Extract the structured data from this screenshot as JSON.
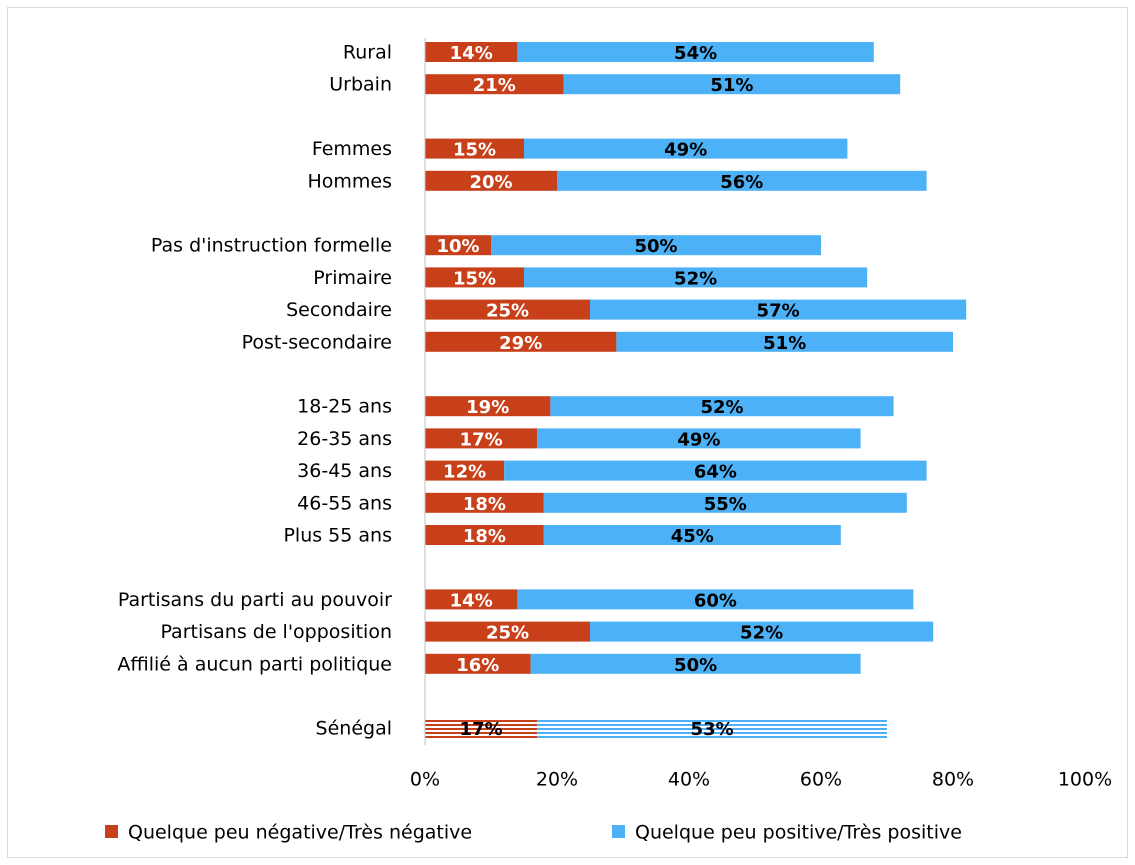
{
  "chart_data": {
    "type": "stacked_bar_horizontal",
    "categories": [
      "Rural",
      "Urbain",
      null,
      "Femmes",
      "Hommes",
      null,
      "Pas d'instruction formelle",
      "Primaire",
      "Secondaire",
      "Post-secondaire",
      null,
      "18-25 ans",
      "26-35 ans",
      "36-45 ans",
      "46-55 ans",
      "Plus 55 ans",
      null,
      "Partisans du parti au pouvoir",
      "Partisans de l'opposition",
      "Affilié à aucun parti politique",
      null,
      "Sénégal"
    ],
    "series": [
      {
        "name": "Quelque peu négative/Très négative",
        "color": "#c8401a",
        "values": [
          14,
          21,
          null,
          15,
          20,
          null,
          10,
          15,
          25,
          29,
          null,
          19,
          17,
          12,
          18,
          18,
          null,
          14,
          25,
          16,
          null,
          17
        ],
        "value_labels": [
          "14%",
          "21%",
          null,
          "15%",
          "20%",
          null,
          "10%",
          "15%",
          "25%",
          "29%",
          null,
          "19%",
          "17%",
          "12%",
          "18%",
          "18%",
          null,
          "14%",
          "25%",
          "16%",
          null,
          "17%"
        ]
      },
      {
        "name": "Quelque peu positive/Très positive",
        "color": "#4cb1f7",
        "values": [
          54,
          51,
          null,
          49,
          56,
          null,
          50,
          52,
          57,
          51,
          null,
          52,
          49,
          64,
          55,
          45,
          null,
          60,
          52,
          50,
          null,
          53
        ],
        "value_labels": [
          "54%",
          "51%",
          null,
          "49%",
          "56%",
          null,
          "50%",
          "52%",
          "57%",
          "51%",
          null,
          "52%",
          "49%",
          "64%",
          "55%",
          "45%",
          null,
          "60%",
          "52%",
          "50%",
          null,
          "53%"
        ]
      }
    ],
    "xlim": [
      0,
      100
    ],
    "xticks": [
      {
        "value": 0,
        "label": "0%"
      },
      {
        "value": 20,
        "label": "20%"
      },
      {
        "value": 40,
        "label": "40%"
      },
      {
        "value": 60,
        "label": "60%"
      },
      {
        "value": 80,
        "label": "80%"
      },
      {
        "value": 100,
        "label": "100%"
      }
    ],
    "hatched": [
      21
    ],
    "legend": "bottom"
  }
}
